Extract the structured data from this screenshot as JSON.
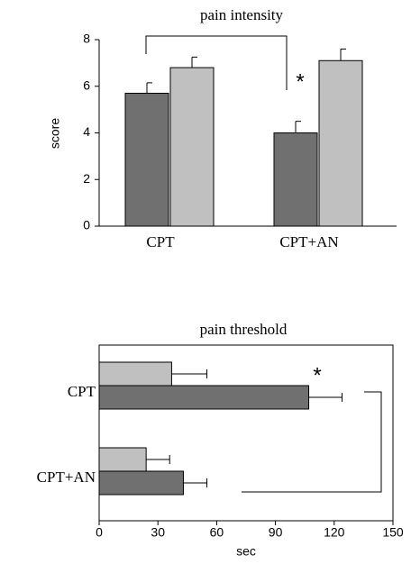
{
  "chart_data": [
    {
      "type": "bar",
      "title": "pain intensity",
      "y_label": "score",
      "annotation": "*",
      "categories": [
        "CPT",
        "CPT+AN"
      ],
      "series": [
        {
          "color": "#707070",
          "values": [
            5.7,
            4.0
          ],
          "errors": [
            0.45,
            0.5
          ]
        },
        {
          "color": "#c0c0c0",
          "values": [
            6.8,
            7.1
          ],
          "errors": [
            0.45,
            0.5
          ]
        }
      ],
      "ylim": [
        0,
        8
      ],
      "yticks": [
        0,
        2,
        4,
        6,
        8
      ]
    },
    {
      "type": "barh",
      "title": "pain threshold",
      "x_label": "sec",
      "annotation": "*",
      "categories": [
        "CPT",
        "CPT+AN"
      ],
      "series": [
        {
          "color": "#c0c0c0",
          "values": [
            37,
            24
          ],
          "errors": [
            18,
            12
          ]
        },
        {
          "color": "#707070",
          "values": [
            107,
            43
          ],
          "errors": [
            17,
            12
          ]
        }
      ],
      "xlim": [
        0,
        150
      ],
      "xticks": [
        0,
        30,
        60,
        90,
        120,
        150
      ]
    }
  ]
}
